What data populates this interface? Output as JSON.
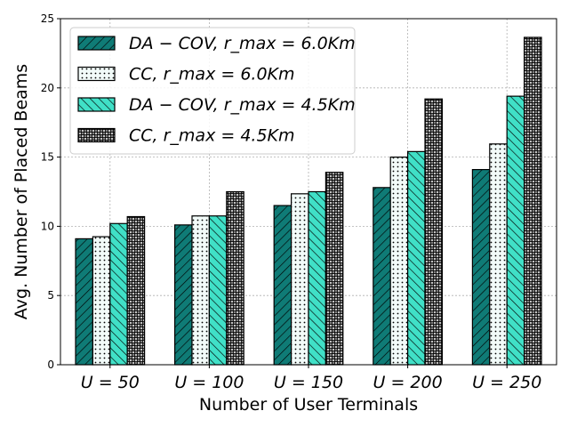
{
  "chart_data": {
    "type": "bar",
    "title": "",
    "xlabel": "Number of User Terminals",
    "ylabel": "Avg. Number of Placed Beams",
    "categories": [
      "U = 50",
      "U = 100",
      "U = 150",
      "U = 200",
      "U = 250"
    ],
    "ylim": [
      0,
      25
    ],
    "yticks": [
      0,
      5,
      10,
      15,
      20,
      25
    ],
    "grid": true,
    "legend_position": "top-left",
    "series": [
      {
        "name": "DA − COV, r_max = 6.0Km",
        "values": [
          9.1,
          10.1,
          11.5,
          12.8,
          14.1
        ],
        "color": "#0f7b76",
        "hatch": "diagonal-right"
      },
      {
        "name": "CC, r_max = 6.0Km",
        "values": [
          9.25,
          10.75,
          12.35,
          15.0,
          15.95
        ],
        "color": "#f2fbf9",
        "hatch": "dots"
      },
      {
        "name": "DA − COV, r_max = 4.5Km",
        "values": [
          10.2,
          10.75,
          12.5,
          15.4,
          19.4
        ],
        "color": "#40e0c7",
        "hatch": "diagonal-left"
      },
      {
        "name": "CC, r_max = 4.5Km",
        "values": [
          10.7,
          12.5,
          13.9,
          19.2,
          23.65
        ],
        "color": "#c4c4c4",
        "hatch": "circles"
      }
    ]
  }
}
